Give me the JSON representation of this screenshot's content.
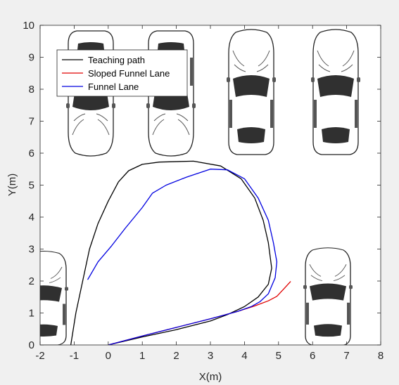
{
  "chart_data": {
    "type": "line",
    "xlabel": "X(m)",
    "ylabel": "Y(m)",
    "xlim": [
      -2,
      8
    ],
    "ylim": [
      0,
      10
    ],
    "xticks": [
      -2,
      -1,
      0,
      1,
      2,
      3,
      4,
      5,
      6,
      7,
      8
    ],
    "yticks": [
      0,
      1,
      2,
      3,
      4,
      5,
      6,
      7,
      8,
      9,
      10
    ],
    "grid": false,
    "legend_position": "top-left",
    "background_image": "parking-lot-cars",
    "series": [
      {
        "name": "Teaching path",
        "color": "#000000",
        "x": [
          -1.1,
          -0.95,
          -0.75,
          -0.55,
          -0.3,
          0.0,
          0.3,
          0.6,
          1.0,
          1.5,
          2.5,
          3.3,
          3.9,
          4.3,
          4.55,
          4.7,
          4.8,
          4.7,
          4.4,
          4.0,
          3.5,
          3.0,
          2.0,
          1.0,
          0.0
        ],
        "y": [
          0.0,
          1.0,
          2.0,
          3.0,
          3.8,
          4.5,
          5.1,
          5.45,
          5.65,
          5.72,
          5.75,
          5.6,
          5.2,
          4.6,
          3.9,
          3.2,
          2.4,
          1.9,
          1.5,
          1.2,
          0.95,
          0.75,
          0.48,
          0.25,
          0.0
        ]
      },
      {
        "name": "Sloped Funnel Lane",
        "color": "#e00000",
        "x": [
          0.0,
          1.0,
          2.0,
          3.0,
          3.8,
          4.3,
          4.7,
          4.95,
          5.15,
          5.35
        ],
        "y": [
          0.0,
          0.28,
          0.55,
          0.82,
          1.05,
          1.22,
          1.38,
          1.52,
          1.75,
          1.98
        ]
      },
      {
        "name": "Funnel Lane",
        "color": "#0000e0",
        "x": [
          -0.6,
          -0.3,
          0.1,
          0.5,
          1.0,
          1.3,
          1.7,
          2.3,
          3.0,
          3.5,
          4.0,
          4.4,
          4.7,
          4.85,
          4.95,
          4.9,
          4.7,
          4.45,
          4.2,
          3.8,
          3.0,
          2.0,
          1.0,
          0.0
        ],
        "y": [
          2.05,
          2.6,
          3.1,
          3.65,
          4.3,
          4.75,
          5.0,
          5.25,
          5.5,
          5.48,
          5.2,
          4.6,
          3.9,
          3.2,
          2.6,
          2.1,
          1.6,
          1.35,
          1.2,
          1.05,
          0.82,
          0.55,
          0.28,
          0.0
        ]
      }
    ]
  }
}
